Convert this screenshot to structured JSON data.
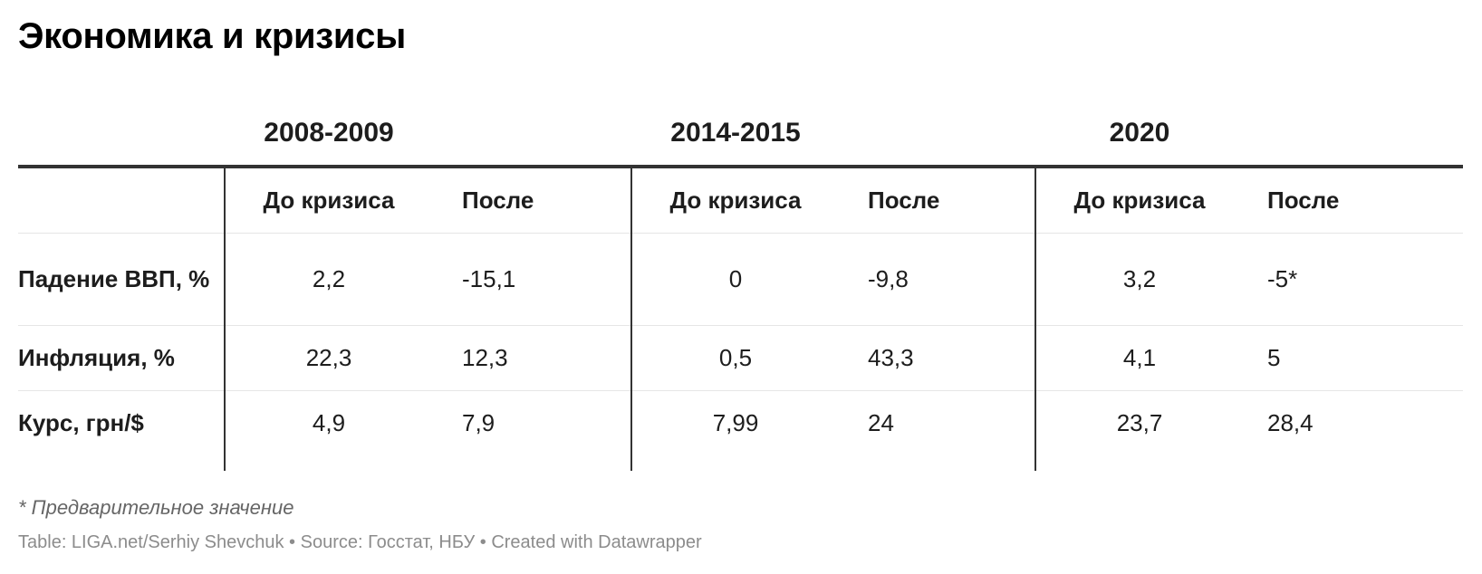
{
  "title": "Экономика и кризисы",
  "groups": [
    "2008-2009",
    "2014-2015",
    "2020"
  ],
  "sub_headers": {
    "before": "До кризиса",
    "after": "После"
  },
  "rows": [
    {
      "label": "Падение ВВП, %",
      "values": [
        "2,2",
        "-15,1",
        "0",
        "-9,8",
        "3,2",
        "-5*"
      ]
    },
    {
      "label": "Инфляция, %",
      "values": [
        "22,3",
        "12,3",
        "0,5",
        "43,3",
        "4,1",
        "5"
      ]
    },
    {
      "label": "Курс, грн/$",
      "values": [
        "4,9",
        "7,9",
        "7,99",
        "24",
        "23,7",
        "28,4"
      ]
    }
  ],
  "note": "* Предварительное значение",
  "footer": "Table: LIGA.net/Serhiy Shevchuk • Source: Госстат, НБУ • Created with Datawrapper",
  "chart_data": {
    "type": "table",
    "title": "Экономика и кризисы",
    "columns": [
      "",
      "2008-2009 До кризиса",
      "2008-2009 После",
      "2014-2015 До кризиса",
      "2014-2015 После",
      "2020 До кризиса",
      "2020 После"
    ],
    "rows": [
      [
        "Падение ВВП, %",
        "2,2",
        "-15,1",
        "0",
        "-9,8",
        "3,2",
        "-5*"
      ],
      [
        "Инфляция, %",
        "22,3",
        "12,3",
        "0,5",
        "43,3",
        "4,1",
        "5"
      ],
      [
        "Курс, грн/$",
        "4,9",
        "7,9",
        "7,99",
        "24",
        "23,7",
        "28,4"
      ]
    ]
  }
}
